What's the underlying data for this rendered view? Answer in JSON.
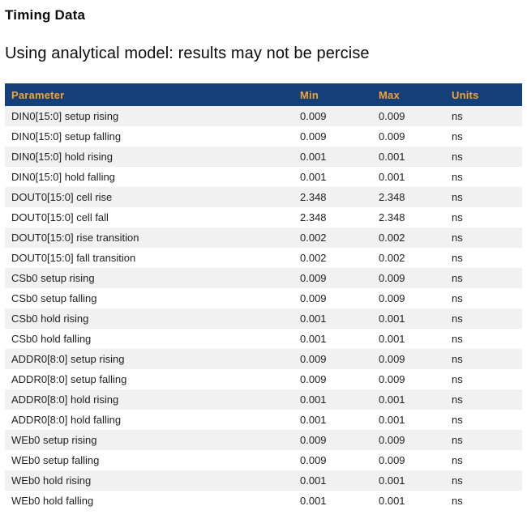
{
  "page": {
    "title": "Timing Data",
    "subtitle": "Using analytical model: results may not be percise"
  },
  "colors": {
    "header_bg": "#153F78",
    "header_text": "#F0A335",
    "row_stripe": "#F1F1F1",
    "row_text": "#1F1F1F"
  },
  "table": {
    "columns": [
      "Parameter",
      "Min",
      "Max",
      "Units"
    ],
    "rows": [
      {
        "param": "DIN0[15:0] setup rising",
        "min": "0.009",
        "max": "0.009",
        "units": "ns"
      },
      {
        "param": "DIN0[15:0] setup falling",
        "min": "0.009",
        "max": "0.009",
        "units": "ns"
      },
      {
        "param": "DIN0[15:0] hold rising",
        "min": "0.001",
        "max": "0.001",
        "units": "ns"
      },
      {
        "param": "DIN0[15:0] hold falling",
        "min": "0.001",
        "max": "0.001",
        "units": "ns"
      },
      {
        "param": "DOUT0[15:0] cell rise",
        "min": "2.348",
        "max": "2.348",
        "units": "ns"
      },
      {
        "param": "DOUT0[15:0] cell fall",
        "min": "2.348",
        "max": "2.348",
        "units": "ns"
      },
      {
        "param": "DOUT0[15:0] rise transition",
        "min": "0.002",
        "max": "0.002",
        "units": "ns"
      },
      {
        "param": "DOUT0[15:0] fall transition",
        "min": "0.002",
        "max": "0.002",
        "units": "ns"
      },
      {
        "param": "CSb0 setup rising",
        "min": "0.009",
        "max": "0.009",
        "units": "ns"
      },
      {
        "param": "CSb0 setup falling",
        "min": "0.009",
        "max": "0.009",
        "units": "ns"
      },
      {
        "param": "CSb0 hold rising",
        "min": "0.001",
        "max": "0.001",
        "units": "ns"
      },
      {
        "param": "CSb0 hold falling",
        "min": "0.001",
        "max": "0.001",
        "units": "ns"
      },
      {
        "param": "ADDR0[8:0] setup rising",
        "min": "0.009",
        "max": "0.009",
        "units": "ns"
      },
      {
        "param": "ADDR0[8:0] setup falling",
        "min": "0.009",
        "max": "0.009",
        "units": "ns"
      },
      {
        "param": "ADDR0[8:0] hold rising",
        "min": "0.001",
        "max": "0.001",
        "units": "ns"
      },
      {
        "param": "ADDR0[8:0] hold falling",
        "min": "0.001",
        "max": "0.001",
        "units": "ns"
      },
      {
        "param": "WEb0 setup rising",
        "min": "0.009",
        "max": "0.009",
        "units": "ns"
      },
      {
        "param": "WEb0 setup falling",
        "min": "0.009",
        "max": "0.009",
        "units": "ns"
      },
      {
        "param": "WEb0 hold rising",
        "min": "0.001",
        "max": "0.001",
        "units": "ns"
      },
      {
        "param": "WEb0 hold falling",
        "min": "0.001",
        "max": "0.001",
        "units": "ns"
      }
    ]
  }
}
